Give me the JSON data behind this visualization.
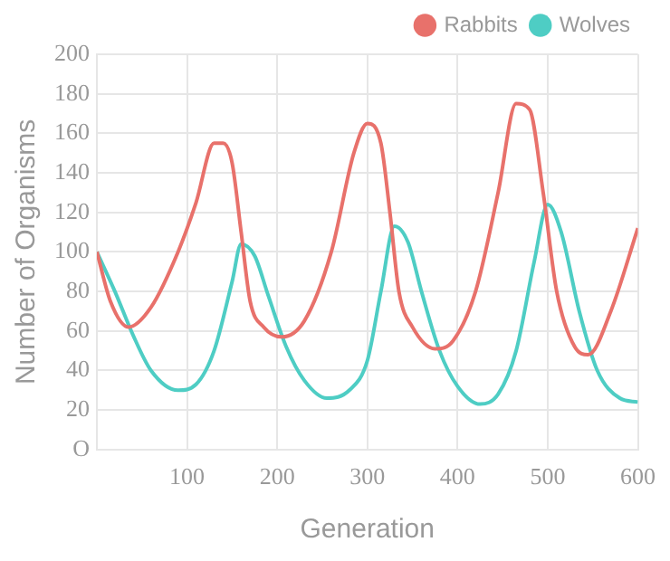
{
  "chart_data": {
    "type": "line",
    "xlabel": "Generation",
    "ylabel": "Number of Organisms",
    "xlim": [
      0,
      600
    ],
    "xticks": [
      {
        "value": 0,
        "label": null
      },
      100,
      200,
      300,
      400,
      500,
      600
    ],
    "ylim": [
      0,
      200
    ],
    "yticks": [
      {
        "value": 0,
        "label": "O"
      },
      20,
      40,
      60,
      80,
      100,
      120,
      140,
      160,
      180,
      200
    ],
    "grid": true,
    "legend": "top right",
    "marker": "none",
    "line_style": "solid",
    "series": [
      {
        "name": "Rabbits",
        "color": "#e8716b",
        "x": [
          0,
          15,
          35,
          60,
          90,
          110,
          130,
          140,
          150,
          160,
          170,
          185,
          205,
          230,
          260,
          285,
          300,
          315,
          325,
          335,
          350,
          375,
          395,
          420,
          445,
          465,
          480,
          495,
          510,
          530,
          545,
          570,
          600
        ],
        "values": [
          100,
          75,
          62,
          72,
          100,
          125,
          155,
          155,
          145,
          110,
          75,
          62,
          57,
          65,
          100,
          150,
          165,
          155,
          120,
          80,
          62,
          51,
          55,
          80,
          130,
          175,
          172,
          130,
          80,
          52,
          48,
          70,
          112
        ]
      },
      {
        "name": "Wolves",
        "color": "#4ecdc4",
        "x": [
          0,
          20,
          40,
          60,
          90,
          110,
          130,
          150,
          160,
          175,
          190,
          210,
          230,
          255,
          280,
          300,
          315,
          330,
          345,
          360,
          380,
          400,
          425,
          445,
          465,
          485,
          500,
          515,
          535,
          555,
          580,
          600
        ],
        "values": [
          100,
          80,
          58,
          40,
          30,
          33,
          50,
          85,
          104,
          98,
          78,
          52,
          35,
          26,
          30,
          45,
          80,
          113,
          105,
          80,
          50,
          32,
          23,
          28,
          50,
          95,
          124,
          110,
          70,
          40,
          26,
          24
        ]
      }
    ]
  }
}
